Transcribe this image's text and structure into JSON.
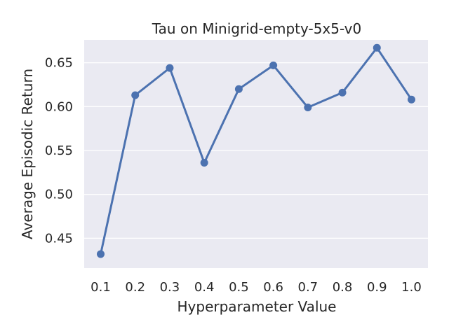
{
  "chart_data": {
    "type": "line",
    "title": "Tau on Minigrid-empty-5x5-v0",
    "xlabel": "Hyperparameter Value",
    "ylabel": "Average Episodic Return",
    "categories": [
      "0.1",
      "0.2",
      "0.3",
      "0.4",
      "0.5",
      "0.6",
      "0.7",
      "0.8",
      "0.9",
      "1.0"
    ],
    "series": [
      {
        "values": [
          0.432,
          0.613,
          0.644,
          0.536,
          0.62,
          0.647,
          0.599,
          0.616,
          0.667,
          0.608
        ]
      }
    ],
    "ylim": [
      0.416,
      0.676
    ],
    "yticks": [
      "0.45",
      "0.50",
      "0.55",
      "0.60",
      "0.65"
    ],
    "grid": true,
    "colors": {
      "background": "#eaeaf2",
      "grid": "#ffffff",
      "line": "#4c72b0"
    }
  }
}
